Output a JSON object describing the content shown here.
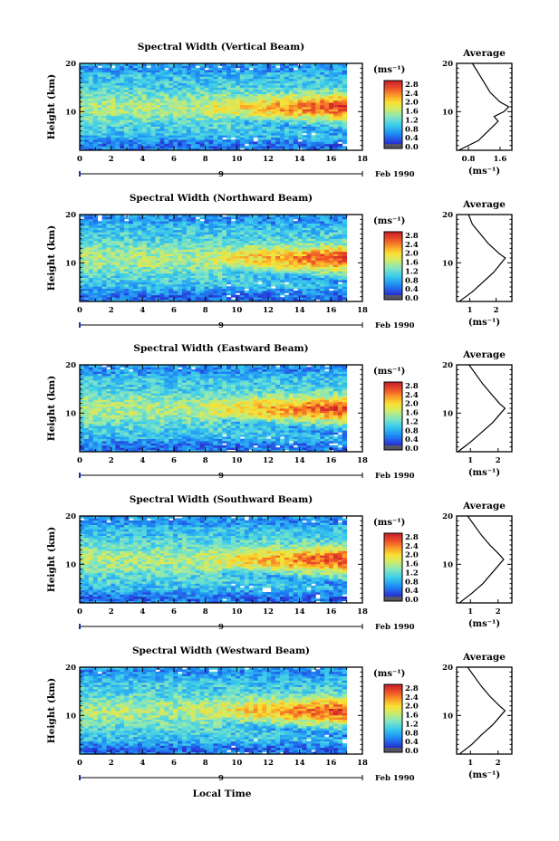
{
  "footer_xlabel": "Local Time",
  "date_label": "Feb 1990",
  "date_marker": "9",
  "ylabel": "Height (km)",
  "unit_label": "(ms⁻¹)",
  "average_title": "Average",
  "colorbar_labels": [
    "2.8",
    "2.4",
    "2.0",
    "1.6",
    "1.2",
    "0.8",
    "0.4",
    "0.0"
  ],
  "x_tick_labels": [
    "0",
    "2",
    "4",
    "6",
    "8",
    "10",
    "12",
    "14",
    "16",
    "18"
  ],
  "y_tick_labels": [
    "20",
    "10"
  ],
  "chart_data": [
    {
      "type": "heatmap",
      "title": "Spectral Width (Vertical Beam)",
      "xlabel": "Local Time",
      "ylabel": "Height (km)",
      "xlim": [
        0,
        18
      ],
      "ylim": [
        2,
        20
      ],
      "colorbar_range": [
        0.0,
        2.8
      ],
      "average_profile": {
        "title": "Average",
        "xlabel": "(ms⁻¹)",
        "xticks": [
          "0.8",
          "1.6"
        ],
        "xlim": [
          0.5,
          1.9
        ],
        "height": [
          2,
          4,
          6,
          8,
          9,
          10,
          11,
          12,
          14,
          16,
          18,
          20
        ],
        "value": [
          0.55,
          1.05,
          1.3,
          1.55,
          1.45,
          1.7,
          1.82,
          1.6,
          1.35,
          1.2,
          1.05,
          0.9
        ]
      }
    },
    {
      "type": "heatmap",
      "title": "Spectral Width (Northward Beam)",
      "xlabel": "Local Time",
      "ylabel": "Height (km)",
      "xlim": [
        0,
        18
      ],
      "ylim": [
        2,
        20
      ],
      "colorbar_range": [
        0.0,
        2.8
      ],
      "average_profile": {
        "title": "Average",
        "xlabel": "(ms⁻¹)",
        "xticks": [
          "1",
          "2"
        ],
        "xlim": [
          0.5,
          2.6
        ],
        "height": [
          2,
          4,
          6,
          8,
          9,
          10,
          11,
          12,
          14,
          16,
          18,
          20
        ],
        "value": [
          0.6,
          1.1,
          1.5,
          1.9,
          2.05,
          2.2,
          2.35,
          2.1,
          1.7,
          1.4,
          1.1,
          0.95
        ]
      }
    },
    {
      "type": "heatmap",
      "title": "Spectral Width (Eastward Beam)",
      "xlabel": "Local Time",
      "ylabel": "Height (km)",
      "xlim": [
        0,
        18
      ],
      "ylim": [
        2,
        20
      ],
      "colorbar_range": [
        0.0,
        2.8
      ],
      "average_profile": {
        "title": "Average",
        "xlabel": "(ms⁻¹)",
        "xticks": [
          "1",
          "2"
        ],
        "xlim": [
          0.5,
          2.5
        ],
        "height": [
          2,
          4,
          6,
          8,
          9,
          10,
          11,
          12,
          14,
          16,
          18,
          20
        ],
        "value": [
          0.55,
          1.0,
          1.4,
          1.8,
          1.95,
          2.1,
          2.25,
          2.05,
          1.75,
          1.45,
          1.2,
          0.95
        ]
      }
    },
    {
      "type": "heatmap",
      "title": "Spectral Width (Southward Beam)",
      "xlabel": "Local Time",
      "ylabel": "Height (km)",
      "xlim": [
        0,
        18
      ],
      "ylim": [
        2,
        20
      ],
      "colorbar_range": [
        0.0,
        2.8
      ],
      "average_profile": {
        "title": "Average",
        "xlabel": "(ms⁻¹)",
        "xticks": [
          "1",
          "2"
        ],
        "xlim": [
          0.5,
          2.5
        ],
        "height": [
          2,
          4,
          6,
          8,
          9,
          10,
          11,
          12,
          14,
          16,
          18,
          20
        ],
        "value": [
          0.6,
          1.05,
          1.45,
          1.75,
          1.9,
          2.05,
          2.2,
          2.05,
          1.7,
          1.4,
          1.15,
          0.9
        ]
      }
    },
    {
      "type": "heatmap",
      "title": "Spectral Width (Westward Beam)",
      "xlabel": "Local Time",
      "ylabel": "Height (km)",
      "xlim": [
        0,
        18
      ],
      "ylim": [
        2,
        20
      ],
      "colorbar_range": [
        0.0,
        2.8
      ],
      "average_profile": {
        "title": "Average",
        "xlabel": "(ms⁻¹)",
        "xticks": [
          "1",
          "2"
        ],
        "xlim": [
          0.5,
          2.5
        ],
        "height": [
          2,
          4,
          6,
          8,
          9,
          10,
          11,
          12,
          14,
          16,
          18,
          20
        ],
        "value": [
          0.6,
          1.05,
          1.4,
          1.8,
          1.95,
          2.1,
          2.25,
          2.05,
          1.7,
          1.4,
          1.15,
          0.9
        ]
      }
    }
  ]
}
